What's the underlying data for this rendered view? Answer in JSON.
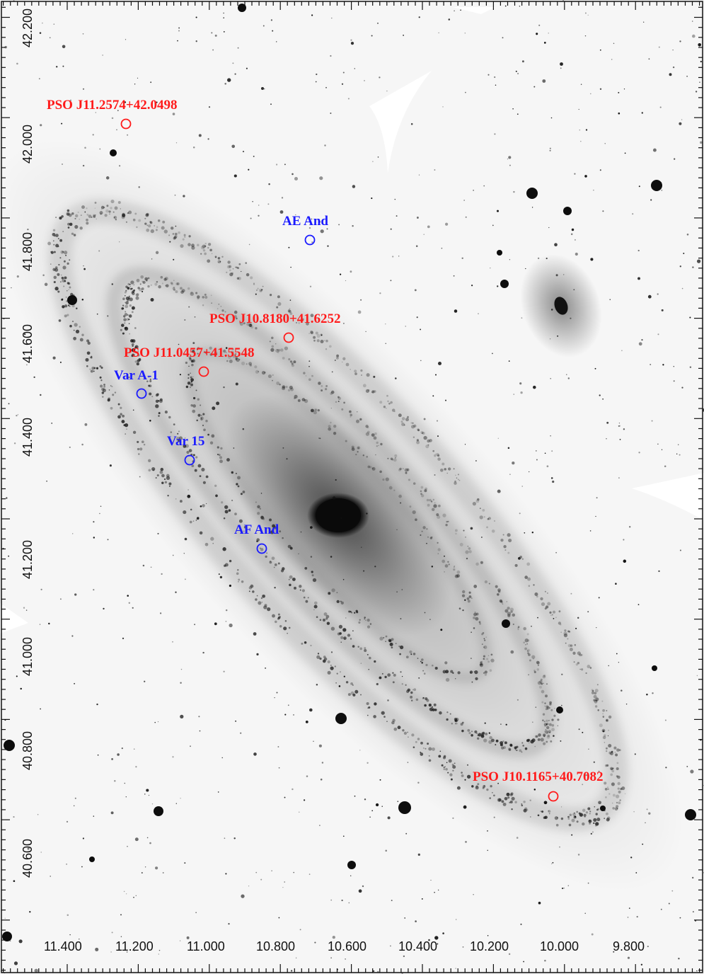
{
  "image": {
    "subject": "Andromeda galaxy (M31)",
    "rendering": "inverted grayscale",
    "colors": {
      "background": "#ffffff",
      "red_marker": "#ff1a1a",
      "blue_marker": "#1a1aff",
      "axis": "#111111"
    }
  },
  "axes": {
    "x_ticks": [
      "11.400",
      "11.200",
      "11.000",
      "10.800",
      "10.600",
      "10.400",
      "10.200",
      "10.000",
      "9.800"
    ],
    "y_ticks": [
      "42.200",
      "42.000",
      "41.800",
      "41.600",
      "41.400",
      "41.200",
      "41.000",
      "40.800",
      "40.600"
    ]
  },
  "markers": [
    {
      "label": "PSO J11.2574+42.0498",
      "color": "red"
    },
    {
      "label": "AE And",
      "color": "blue"
    },
    {
      "label": "PSO J10.8180+41.6252",
      "color": "red"
    },
    {
      "label": "PSO J11.0457+41.5548",
      "color": "red"
    },
    {
      "label": "Var A-1",
      "color": "blue"
    },
    {
      "label": "Var 15",
      "color": "blue"
    },
    {
      "label": "AF And",
      "color": "blue"
    },
    {
      "label": "PSO J10.1165+40.7082",
      "color": "red"
    }
  ]
}
